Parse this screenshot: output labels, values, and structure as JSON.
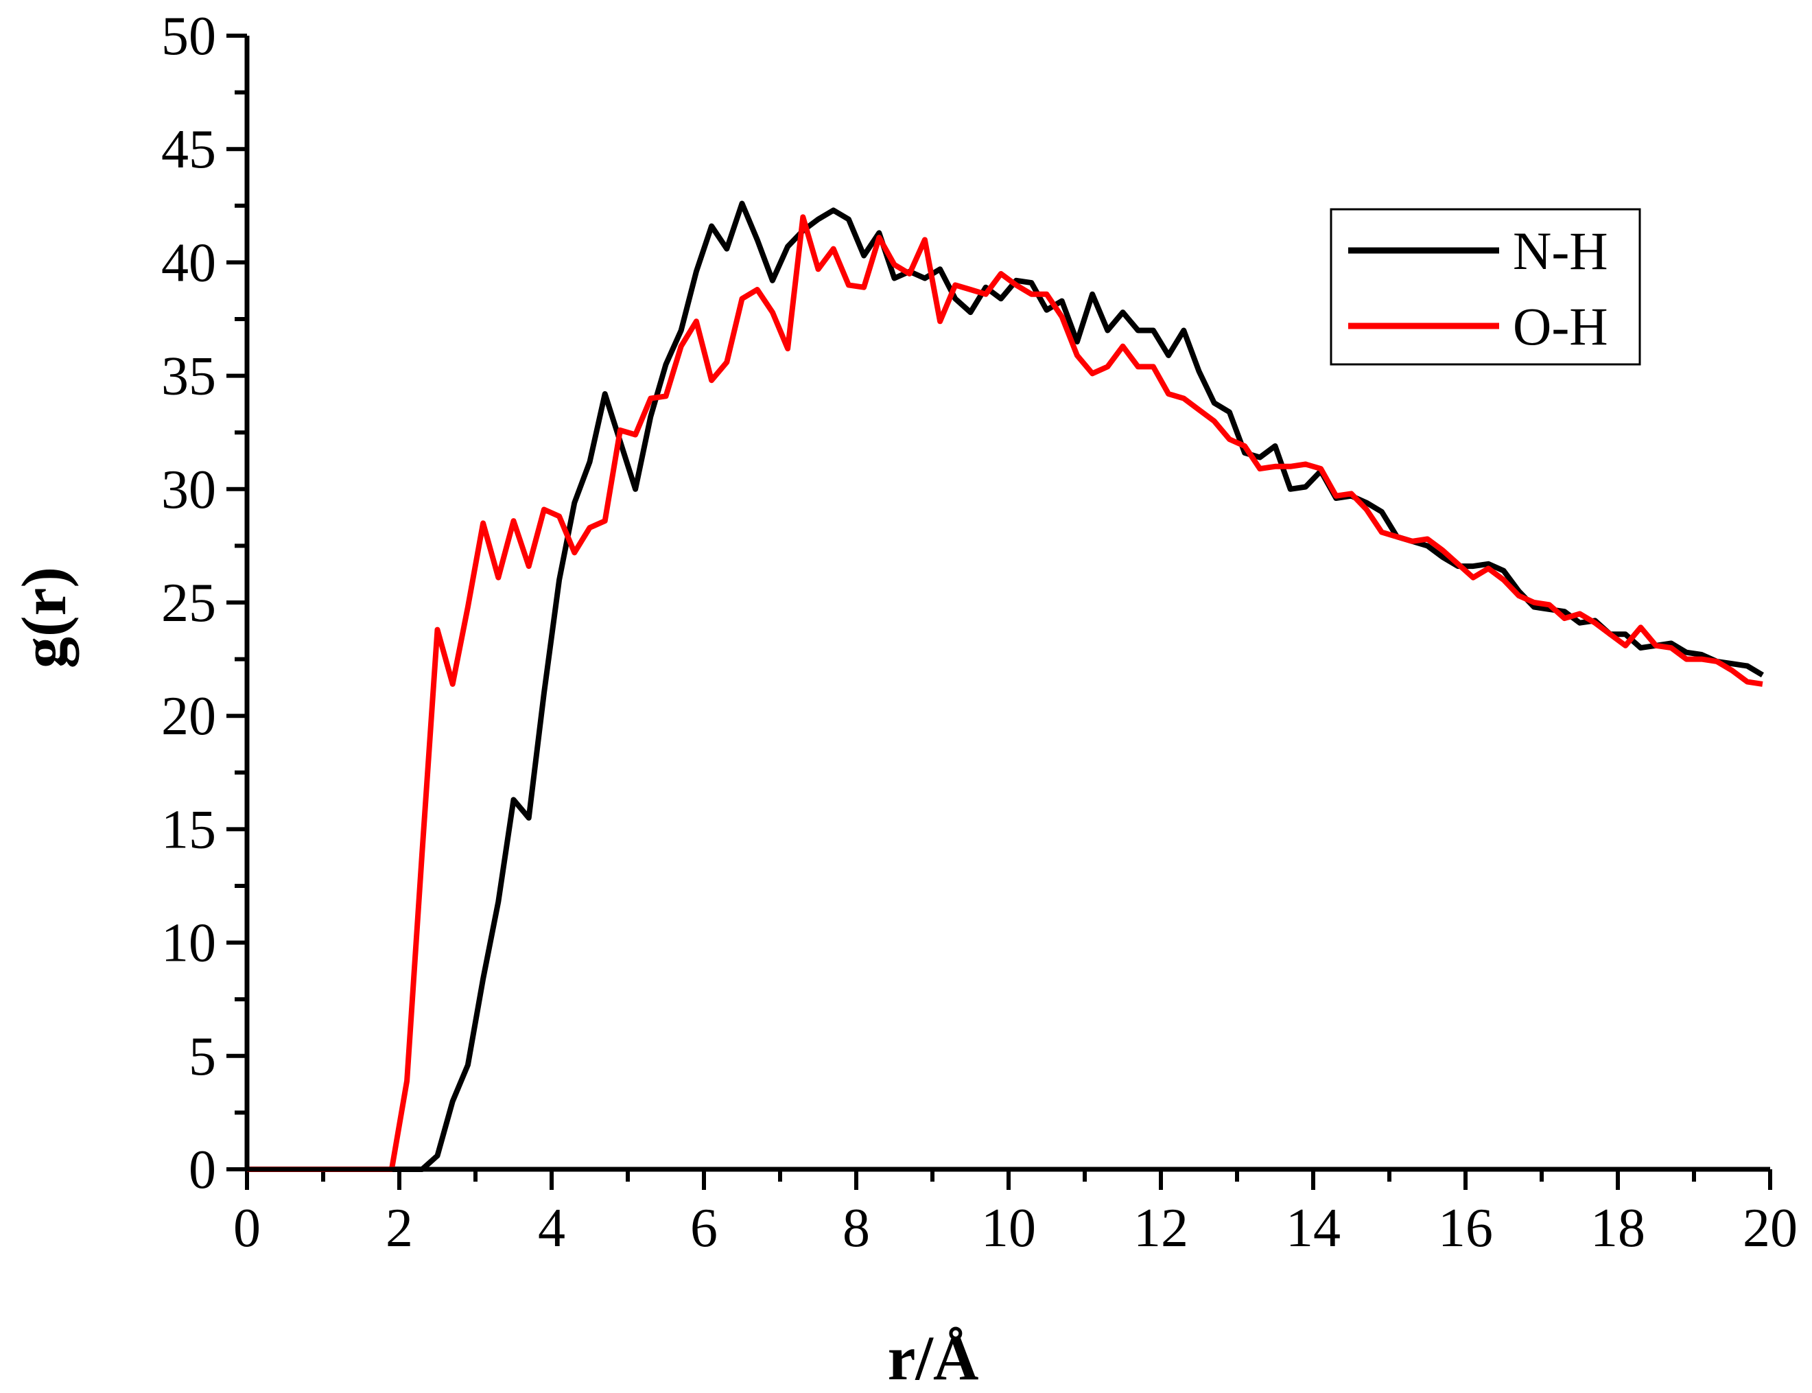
{
  "chart_data": {
    "type": "line",
    "title": "",
    "xlabel": "r/Å",
    "ylabel": "g(r)",
    "xlim": [
      0,
      20
    ],
    "ylim": [
      0,
      50
    ],
    "x_ticks": [
      0,
      2,
      4,
      6,
      8,
      10,
      12,
      14,
      16,
      18,
      20
    ],
    "y_ticks": [
      0,
      5,
      10,
      15,
      20,
      25,
      30,
      35,
      40,
      45,
      50
    ],
    "grid": false,
    "legend": "top-right",
    "series": [
      {
        "name": "N-H",
        "color": "#000000",
        "x": [
          0,
          0.1,
          0.3,
          0.5,
          0.7,
          0.9,
          1.1,
          1.3,
          1.5,
          1.7,
          1.9,
          2.1,
          2.3,
          2.5,
          2.7,
          2.9,
          3.1,
          3.3,
          3.5,
          3.7,
          3.9,
          4.1,
          4.3,
          4.5,
          4.7,
          4.9,
          5.1,
          5.3,
          5.5,
          5.7,
          5.9,
          6.1,
          6.3,
          6.5,
          6.7,
          6.9,
          7.1,
          7.3,
          7.5,
          7.7,
          7.9,
          8.1,
          8.3,
          8.5,
          8.7,
          8.9,
          9.1,
          9.3,
          9.5,
          9.7,
          9.9,
          10.1,
          10.3,
          10.5,
          10.7,
          10.9,
          11.1,
          11.3,
          11.5,
          11.7,
          11.9,
          12.1,
          12.3,
          12.5,
          12.7,
          12.9,
          13.1,
          13.3,
          13.5,
          13.7,
          13.9,
          14.1,
          14.3,
          14.5,
          14.7,
          14.9,
          15.1,
          15.3,
          15.5,
          15.7,
          15.9,
          16.1,
          16.3,
          16.5,
          16.7,
          16.9,
          17.1,
          17.3,
          17.5,
          17.7,
          17.9,
          18.1,
          18.3,
          18.5,
          18.7,
          18.9,
          19.1,
          19.3,
          19.5,
          19.7,
          19.9
        ],
        "y": [
          0,
          0,
          0,
          0,
          0,
          0,
          0,
          0,
          0,
          0,
          0,
          0,
          0,
          0.6,
          3.0,
          4.6,
          8.4,
          11.8,
          16.3,
          15.5,
          21.0,
          26.0,
          29.4,
          31.2,
          34.2,
          32.1,
          30.0,
          33.2,
          35.5,
          37.0,
          39.6,
          41.6,
          40.6,
          42.6,
          41.0,
          39.2,
          40.7,
          41.4,
          41.9,
          42.3,
          41.9,
          40.3,
          41.3,
          39.3,
          39.6,
          39.3,
          39.7,
          38.4,
          37.8,
          38.9,
          38.4,
          39.2,
          39.1,
          37.9,
          38.3,
          36.5,
          38.6,
          37.0,
          37.8,
          37.0,
          37.0,
          35.9,
          37.0,
          35.2,
          33.8,
          33.4,
          31.6,
          31.4,
          31.9,
          30.0,
          30.1,
          30.8,
          29.6,
          29.7,
          29.4,
          29.0,
          27.9,
          27.7,
          27.5,
          27.0,
          26.6,
          26.6,
          26.7,
          26.4,
          25.5,
          24.8,
          24.7,
          24.6,
          24.1,
          24.2,
          23.6,
          23.6,
          23.0,
          23.1,
          23.2,
          22.8,
          22.7,
          22.4,
          22.3,
          22.2,
          21.8
        ]
      },
      {
        "name": "O-H",
        "color": "#ff0000",
        "x": [
          0,
          0.1,
          0.3,
          0.5,
          0.7,
          0.9,
          1.1,
          1.3,
          1.5,
          1.7,
          1.9,
          2.1,
          2.3,
          2.5,
          2.7,
          2.9,
          3.1,
          3.3,
          3.5,
          3.7,
          3.9,
          4.1,
          4.3,
          4.5,
          4.7,
          4.9,
          5.1,
          5.3,
          5.5,
          5.7,
          5.9,
          6.1,
          6.3,
          6.5,
          6.7,
          6.9,
          7.1,
          7.3,
          7.5,
          7.7,
          7.9,
          8.1,
          8.3,
          8.5,
          8.7,
          8.9,
          9.1,
          9.3,
          9.5,
          9.7,
          9.9,
          10.1,
          10.3,
          10.5,
          10.7,
          10.9,
          11.1,
          11.3,
          11.5,
          11.7,
          11.9,
          12.1,
          12.3,
          12.5,
          12.7,
          12.9,
          13.1,
          13.3,
          13.5,
          13.7,
          13.9,
          14.1,
          14.3,
          14.5,
          14.7,
          14.9,
          15.1,
          15.3,
          15.5,
          15.7,
          15.9,
          16.1,
          16.3,
          16.5,
          16.7,
          16.9,
          17.1,
          17.3,
          17.5,
          17.7,
          17.9,
          18.1,
          18.3,
          18.5,
          18.7,
          18.9,
          19.1,
          19.3,
          19.5,
          19.7,
          19.9
        ],
        "y": [
          0,
          0,
          0,
          0,
          0,
          0,
          0,
          0,
          0,
          0,
          0,
          3.9,
          14.0,
          23.8,
          21.4,
          24.8,
          28.5,
          26.1,
          28.6,
          26.6,
          29.1,
          28.8,
          27.2,
          28.3,
          28.6,
          32.6,
          32.4,
          34.0,
          34.1,
          36.3,
          37.4,
          34.8,
          35.6,
          38.4,
          38.8,
          37.8,
          36.2,
          42.0,
          39.7,
          40.6,
          39.0,
          38.9,
          41.1,
          39.9,
          39.5,
          41.0,
          37.4,
          39.0,
          38.8,
          38.6,
          39.5,
          39.0,
          38.6,
          38.6,
          37.6,
          35.9,
          35.1,
          35.4,
          36.3,
          35.4,
          35.4,
          34.2,
          34.0,
          33.5,
          33.0,
          32.2,
          31.9,
          30.9,
          31.0,
          31.0,
          31.1,
          30.9,
          29.7,
          29.8,
          29.1,
          28.1,
          27.9,
          27.7,
          27.8,
          27.3,
          26.7,
          26.1,
          26.5,
          26.0,
          25.3,
          25.0,
          24.9,
          24.3,
          24.5,
          24.1,
          23.6,
          23.1,
          23.9,
          23.1,
          23.0,
          22.5,
          22.5,
          22.4,
          22.0,
          21.5,
          21.4
        ]
      }
    ]
  }
}
